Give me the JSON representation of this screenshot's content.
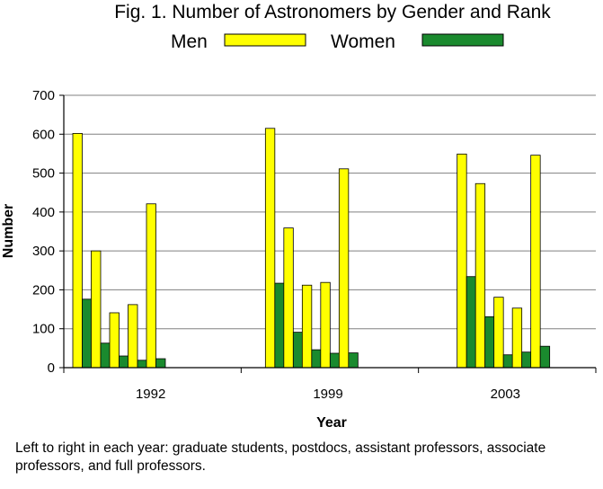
{
  "chart_data": {
    "type": "bar",
    "title": "Fig. 1. Number of Astronomers by Gender and Rank",
    "xlabel": "Year",
    "ylabel": "Number",
    "ylim": [
      0,
      700
    ],
    "yticks": [
      0,
      100,
      200,
      300,
      400,
      500,
      600,
      700
    ],
    "grid": true,
    "legend": "top",
    "categories": [
      "1992",
      "1999",
      "2003"
    ],
    "series": [
      {
        "name": "Men",
        "color": "#ffff00",
        "values": [
          [
            602,
            300,
            141,
            162,
            421
          ],
          [
            615,
            359,
            212,
            219,
            511
          ],
          [
            549,
            473,
            181,
            153,
            546
          ]
        ]
      },
      {
        "name": "Women",
        "color": "#1a8a2e",
        "values": [
          [
            176,
            63,
            30,
            19,
            23
          ],
          [
            217,
            91,
            46,
            37,
            38
          ],
          [
            234,
            131,
            33,
            40,
            55
          ]
        ]
      }
    ],
    "caption": "Left to right in each year: graduate students, postdocs, assistant professors, associate professors, and full professors."
  }
}
